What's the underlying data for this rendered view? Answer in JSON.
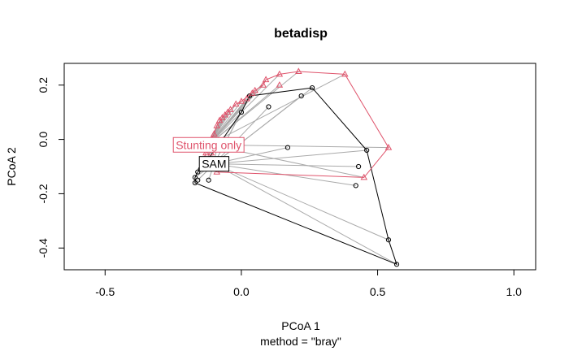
{
  "chart_data": {
    "type": "scatter",
    "title": "betadisp",
    "xlabel": "PCoA 1",
    "sublabel": "method = \"bray\"",
    "ylabel": "PCoA 2",
    "xlim": [
      -0.65,
      1.08
    ],
    "ylim": [
      -0.48,
      0.28
    ],
    "x_ticks": [
      -0.5,
      0.0,
      0.5,
      1.0
    ],
    "x_tick_labels": [
      "-0.5",
      "0.0",
      "0.5",
      "1.0"
    ],
    "y_ticks": [
      -0.4,
      -0.2,
      0.0,
      0.2
    ],
    "y_tick_labels": [
      "-0.4",
      "-0.2",
      "0.0",
      "0.2"
    ],
    "grid": false,
    "colors": {
      "black": "#000000",
      "red": "#DF536B",
      "spider": "#aaaaaa"
    },
    "groups": [
      {
        "name": "SAM",
        "marker": "circle",
        "color": "#000000",
        "centroid": [
          -0.1,
          -0.09
        ],
        "points": [
          [
            -0.09,
            -0.03
          ],
          [
            -0.16,
            -0.12
          ],
          [
            -0.17,
            -0.14
          ],
          [
            -0.17,
            -0.16
          ],
          [
            -0.16,
            -0.15
          ],
          [
            -0.15,
            -0.11
          ],
          [
            -0.12,
            -0.15
          ],
          [
            -0.08,
            -0.1
          ],
          [
            0.0,
            0.1
          ],
          [
            0.03,
            0.16
          ],
          [
            0.1,
            0.12
          ],
          [
            0.22,
            0.16
          ],
          [
            0.26,
            0.19
          ],
          [
            0.17,
            -0.03
          ],
          [
            0.46,
            -0.04
          ],
          [
            0.43,
            -0.1
          ],
          [
            0.42,
            -0.17
          ],
          [
            0.54,
            -0.37
          ],
          [
            0.57,
            -0.46
          ]
        ],
        "hull": [
          [
            -0.17,
            -0.16
          ],
          [
            -0.17,
            -0.14
          ],
          [
            -0.16,
            -0.12
          ],
          [
            -0.09,
            -0.03
          ],
          [
            0.0,
            0.1
          ],
          [
            0.03,
            0.16
          ],
          [
            0.26,
            0.19
          ],
          [
            0.46,
            -0.04
          ],
          [
            0.54,
            -0.37
          ],
          [
            0.57,
            -0.46
          ]
        ]
      },
      {
        "name": "Stunting only",
        "marker": "triangle",
        "color": "#DF536B",
        "centroid": [
          -0.12,
          -0.02
        ],
        "points": [
          [
            -0.13,
            -0.05
          ],
          [
            -0.12,
            -0.02
          ],
          [
            -0.11,
            0.0
          ],
          [
            -0.1,
            0.02
          ],
          [
            -0.09,
            0.05
          ],
          [
            -0.07,
            0.08
          ],
          [
            -0.06,
            0.09
          ],
          [
            -0.04,
            0.11
          ],
          [
            -0.02,
            0.13
          ],
          [
            0.0,
            0.14
          ],
          [
            0.02,
            0.15
          ],
          [
            0.05,
            0.18
          ],
          [
            0.08,
            0.2
          ],
          [
            0.09,
            0.22
          ],
          [
            0.14,
            0.24
          ],
          [
            0.21,
            0.25
          ],
          [
            0.38,
            0.24
          ],
          [
            0.14,
            0.2
          ],
          [
            0.54,
            -0.03
          ],
          [
            0.45,
            -0.14
          ],
          [
            -0.09,
            -0.12
          ],
          [
            -0.14,
            -0.08
          ],
          [
            -0.11,
            -0.05
          ],
          [
            -0.12,
            -0.1
          ],
          [
            -0.08,
            0.07
          ],
          [
            -0.05,
            0.1
          ],
          [
            0.04,
            0.17
          ]
        ],
        "hull": [
          [
            -0.14,
            -0.08
          ],
          [
            -0.13,
            -0.05
          ],
          [
            -0.11,
            0.0
          ],
          [
            -0.1,
            0.02
          ],
          [
            -0.09,
            0.05
          ],
          [
            -0.07,
            0.08
          ],
          [
            -0.04,
            0.11
          ],
          [
            -0.02,
            0.13
          ],
          [
            0.0,
            0.14
          ],
          [
            0.05,
            0.18
          ],
          [
            0.08,
            0.2
          ],
          [
            0.09,
            0.22
          ],
          [
            0.14,
            0.24
          ],
          [
            0.21,
            0.25
          ],
          [
            0.38,
            0.24
          ],
          [
            0.54,
            -0.03
          ],
          [
            0.45,
            -0.14
          ],
          [
            -0.09,
            -0.12
          ]
        ]
      }
    ]
  }
}
